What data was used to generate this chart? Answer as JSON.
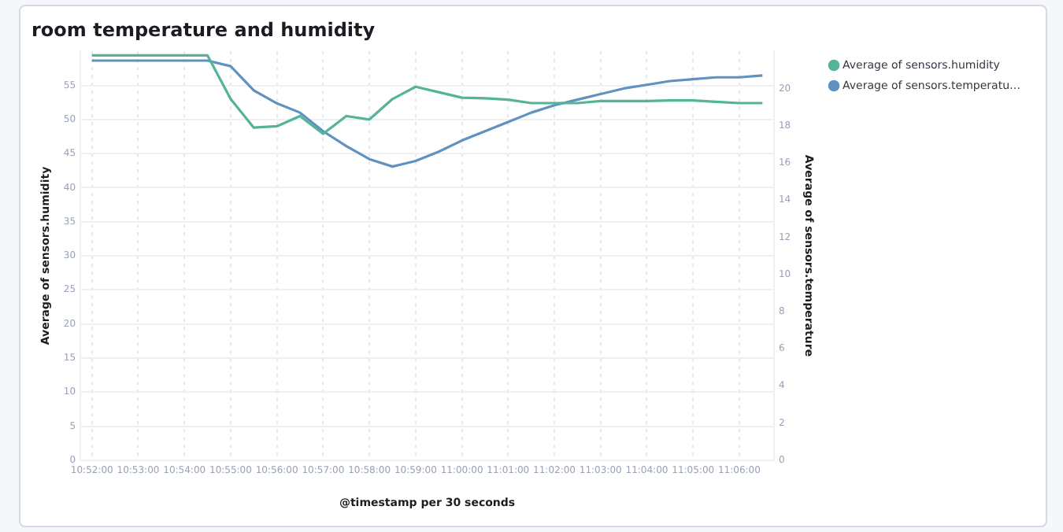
{
  "chart_data": {
    "type": "line",
    "title": "room temperature and humidity",
    "xlabel": "@timestamp per 30 seconds",
    "ylabel": "Average of sensors.humidity",
    "y2label": "Average of sensors.temperature",
    "categories": [
      "10:52:00",
      null,
      "10:53:00",
      null,
      "10:54:00",
      null,
      "10:55:00",
      null,
      "10:56:00",
      null,
      "10:57:00",
      null,
      "10:58:00",
      null,
      "10:59:00",
      null,
      "11:00:00",
      null,
      "11:01:00",
      null,
      "11:02:00",
      null,
      "11:03:00",
      null,
      "11:04:00",
      null,
      "11:05:00",
      null,
      "11:06:00",
      null
    ],
    "series": [
      {
        "name": "Average of sensors.humidity",
        "color": "#54b399",
        "values": [
          59.4,
          59.4,
          59.4,
          59.4,
          59.4,
          59.4,
          53,
          48.8,
          49,
          50.5,
          47.9,
          50.5,
          50,
          53,
          54.8,
          54,
          53.2,
          53.1,
          52.9,
          52.4,
          52.4,
          52.4,
          52.7,
          52.7,
          52.7,
          52.8,
          52.8,
          52.6,
          52.4,
          52.4
        ]
      },
      {
        "name": "Average of sensors.temperatu…",
        "color": "#6092c0",
        "axis": "y2",
        "values": [
          21.5,
          21.5,
          21.5,
          21.5,
          21.5,
          21.5,
          21.2,
          19.9,
          19.2,
          18.7,
          17.7,
          16.9,
          16.2,
          15.8,
          16.1,
          16.6,
          17.2,
          17.7,
          18.2,
          18.7,
          19.1,
          19.4,
          19.7,
          20.0,
          20.2,
          20.4,
          20.5,
          20.6,
          20.6,
          20.7
        ]
      }
    ],
    "ylim": [
      0,
      60
    ],
    "yticks": [
      0,
      5,
      10,
      15,
      20,
      25,
      30,
      35,
      40,
      45,
      50,
      55
    ],
    "y2lim": [
      0,
      22
    ],
    "y2ticks": [
      0,
      2,
      4,
      6,
      8,
      10,
      12,
      14,
      16,
      18,
      20
    ],
    "grid": true,
    "legend": "top right",
    "line_style": "solid"
  }
}
